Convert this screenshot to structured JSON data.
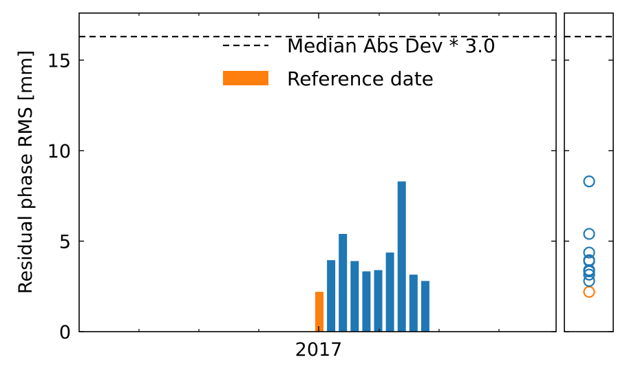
{
  "chart_data": {
    "type": "bar",
    "ylabel": "Residual phase RMS [mm]",
    "ylim": [
      0,
      17.6
    ],
    "yticks": [
      0,
      5,
      10,
      15
    ],
    "xtick_labels": [
      "2017"
    ],
    "bars": [
      {
        "value": 2.2,
        "reference": true
      },
      {
        "value": 3.95,
        "reference": false
      },
      {
        "value": 5.4,
        "reference": false
      },
      {
        "value": 3.9,
        "reference": false
      },
      {
        "value": 3.33,
        "reference": false
      },
      {
        "value": 3.4,
        "reference": false
      },
      {
        "value": 4.37,
        "reference": false
      },
      {
        "value": 8.3,
        "reference": false
      },
      {
        "value": 3.15,
        "reference": false
      },
      {
        "value": 2.8,
        "reference": false
      }
    ],
    "threshold": {
      "value": 16.3,
      "label": "Median Abs Dev * 3.0"
    },
    "legend": {
      "placement": "top-center",
      "threshold_label": "Median Abs Dev * 3.0",
      "reference_label": "Reference date"
    },
    "colors": {
      "bar": "#1f77b4",
      "reference": "#ff7f0e",
      "threshold": "#000000"
    },
    "grid": false
  }
}
